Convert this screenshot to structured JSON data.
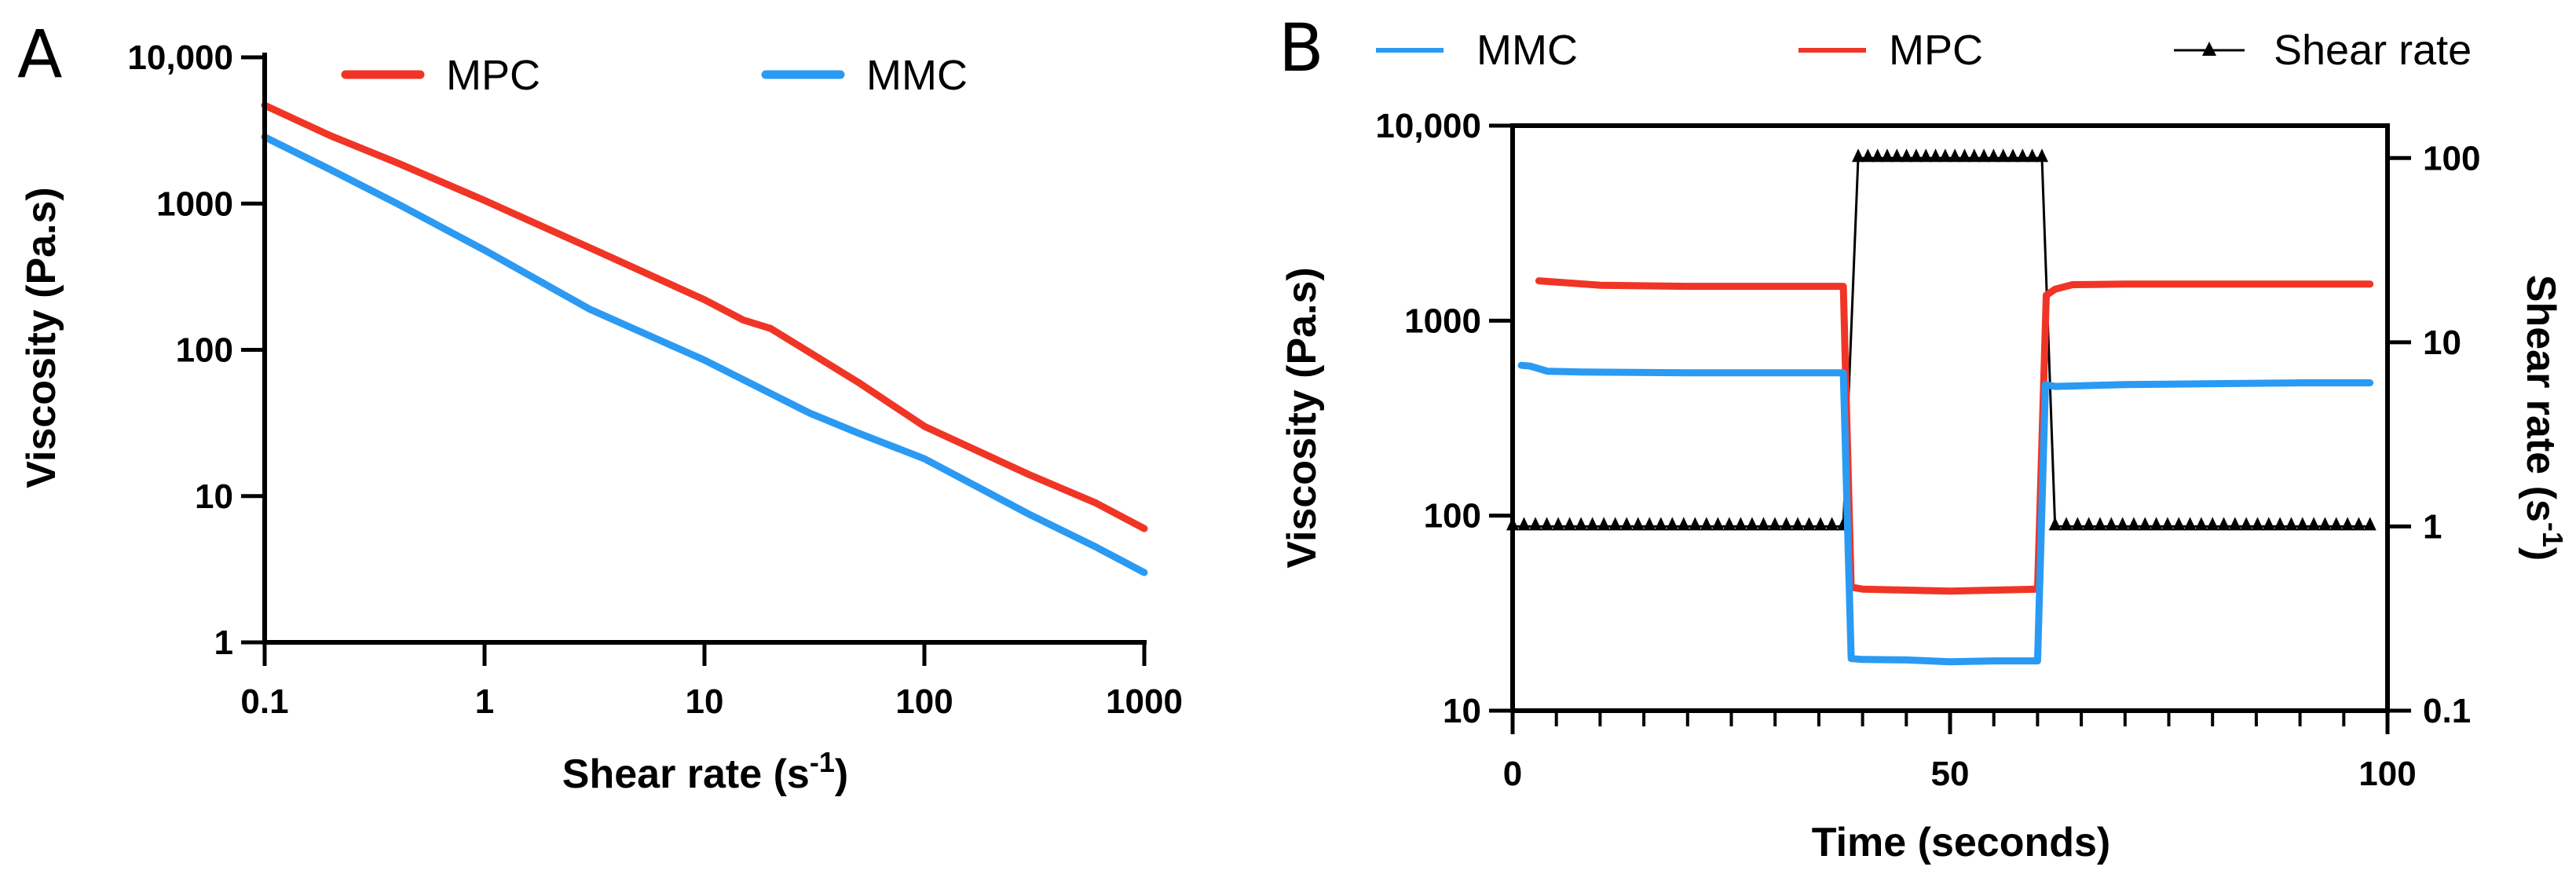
{
  "chart_data": [
    {
      "panel": "A",
      "type": "line",
      "title": "",
      "xlabel": "Shear rate (s",
      "xlabel_sup": "-1",
      "xlabel_end": ")",
      "ylabel": "Viscosity (Pa.s)",
      "xscale": "log",
      "yscale": "log",
      "xlim": [
        0.1,
        1000
      ],
      "ylim": [
        1,
        10000
      ],
      "xticks": [
        0.1,
        1,
        10,
        100,
        1000
      ],
      "xtick_labels": [
        "0.1",
        "1",
        "10",
        "100",
        "1000"
      ],
      "yticks": [
        1,
        10,
        100,
        1000,
        10000
      ],
      "ytick_labels": [
        "1",
        "10",
        "100",
        "1000",
        "10,000"
      ],
      "legend_position": "top",
      "series": [
        {
          "name": "MPC",
          "color": "#f03526",
          "x": [
            0.1,
            0.2,
            0.4,
            1,
            3,
            10,
            15,
            20,
            50,
            100,
            300,
            600,
            1000
          ],
          "y": [
            4700,
            2900,
            1900,
            1050,
            500,
            220,
            160,
            140,
            60,
            30,
            14,
            9,
            6
          ]
        },
        {
          "name": "MMC",
          "color": "#2b9af3",
          "x": [
            0.1,
            0.2,
            0.4,
            1,
            3,
            10,
            30,
            50,
            100,
            300,
            600,
            1000
          ],
          "y": [
            2850,
            1700,
            1000,
            480,
            190,
            85,
            37,
            27,
            18,
            7.5,
            4.5,
            3
          ]
        }
      ]
    },
    {
      "panel": "B",
      "type": "line",
      "title": "",
      "xlabel": "Time (seconds)",
      "ylabel": "Viscosity (Pa.s)",
      "y2label": "Shear rate (s",
      "y2label_sup": "-1",
      "y2label_end": ")",
      "xlim": [
        0,
        100
      ],
      "ylim": [
        10,
        10000
      ],
      "y2lim": [
        0.1,
        150
      ],
      "yscale": "log",
      "y2scale": "log",
      "xticks": [
        0,
        50,
        100
      ],
      "xtick_labels": [
        "0",
        "50",
        "100"
      ],
      "yticks": [
        10,
        100,
        1000,
        10000
      ],
      "ytick_labels": [
        "10",
        "100",
        "1000",
        "10,000"
      ],
      "y2ticks": [
        0.1,
        1,
        10,
        100
      ],
      "y2tick_labels": [
        "0.1",
        "1",
        "10",
        "100"
      ],
      "legend_position": "top",
      "series": [
        {
          "name": "MMC",
          "color": "#2b9af3",
          "axis": "left",
          "x": [
            1,
            2,
            4,
            8,
            20,
            37.8,
            38.7,
            40,
            45,
            50,
            55,
            60,
            60.9,
            62,
            70,
            80,
            90,
            98
          ],
          "y": [
            590,
            585,
            550,
            545,
            540,
            540,
            18.5,
            18.3,
            18.2,
            17.8,
            18,
            18,
            470,
            460,
            470,
            475,
            480,
            480
          ]
        },
        {
          "name": "MPC",
          "color": "#f03526",
          "axis": "left",
          "x": [
            3,
            10,
            20,
            37.8,
            38.7,
            40,
            45,
            50,
            55,
            60,
            61,
            62,
            64,
            70,
            80,
            90,
            98
          ],
          "y": [
            1600,
            1520,
            1500,
            1500,
            43,
            42,
            41.5,
            41,
            41.5,
            42,
            1350,
            1450,
            1530,
            1540,
            1540,
            1540,
            1540
          ]
        },
        {
          "name": "Shear rate",
          "color": "#000000",
          "axis": "right",
          "marker": "triangle",
          "x": [
            0,
            37.8,
            39.5,
            60.5,
            62,
            98
          ],
          "y": [
            1,
            1,
            100,
            100,
            1,
            1
          ],
          "points": [
            {
              "x0": 0,
              "x1": 37.8,
              "count": 30,
              "y": 1
            },
            {
              "x0": 39.5,
              "x1": 60.5,
              "count": 20,
              "y": 100
            },
            {
              "x0": 62,
              "x1": 98,
              "count": 29,
              "y": 1
            }
          ]
        }
      ]
    }
  ]
}
